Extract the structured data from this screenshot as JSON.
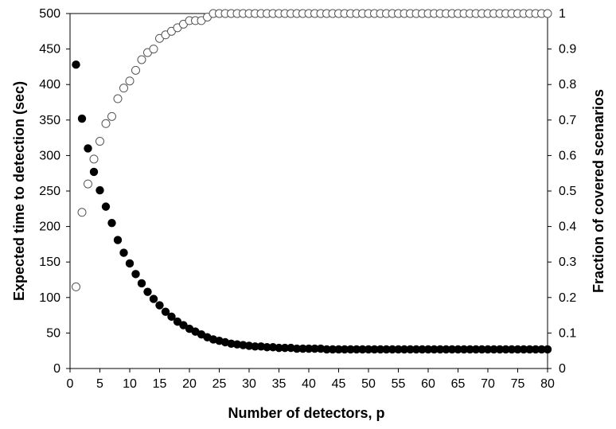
{
  "chart_data": {
    "type": "scatter",
    "title": "",
    "xlabel": "Number of detectors, p",
    "ylabel": "Expected time to detection (sec)",
    "y2label": "Fraction of covered scenarios",
    "xlim": [
      0,
      80
    ],
    "ylim": [
      0,
      500
    ],
    "y2lim": [
      0,
      1
    ],
    "x_ticks": [
      "0",
      "5",
      "10",
      "15",
      "20",
      "25",
      "30",
      "35",
      "40",
      "45",
      "50",
      "55",
      "60",
      "65",
      "70",
      "75",
      "80"
    ],
    "y_ticks": [
      "0",
      "50",
      "100",
      "150",
      "200",
      "250",
      "300",
      "350",
      "400",
      "450",
      "500"
    ],
    "y2_ticks": [
      "0",
      "0.1",
      "0.2",
      "0.3",
      "0.4",
      "0.5",
      "0.6",
      "0.7",
      "0.8",
      "0.9",
      "1"
    ],
    "grid": false,
    "legend": "none",
    "colors": {
      "filled": "#000000",
      "hollow_stroke": "#555555"
    },
    "series": [
      {
        "axis": "left",
        "marker": "filled-circle",
        "x": [
          1,
          2,
          3,
          4,
          5,
          6,
          7,
          8,
          9,
          10,
          11,
          12,
          13,
          14,
          15,
          16,
          17,
          18,
          19,
          20,
          21,
          22,
          23,
          24,
          25,
          26,
          27,
          28,
          29,
          30,
          31,
          32,
          33,
          34,
          35,
          36,
          37,
          38,
          39,
          40,
          41,
          42,
          43,
          44,
          45,
          46,
          47,
          48,
          49,
          50,
          51,
          52,
          53,
          54,
          55,
          56,
          57,
          58,
          59,
          60,
          61,
          62,
          63,
          64,
          65,
          66,
          67,
          68,
          69,
          70,
          71,
          72,
          73,
          74,
          75,
          76,
          77,
          78,
          79,
          80
        ],
        "values": [
          428,
          352,
          310,
          277,
          251,
          228,
          205,
          181,
          163,
          148,
          133,
          120,
          108,
          98,
          89,
          80,
          73,
          66,
          61,
          56,
          52,
          48,
          44,
          41,
          39,
          37,
          35,
          34,
          33,
          32,
          31,
          31,
          30,
          30,
          29,
          29,
          29,
          28,
          28,
          28,
          28,
          28,
          27,
          27,
          27,
          27,
          27,
          27,
          27,
          27,
          27,
          27,
          27,
          27,
          27,
          27,
          27,
          27,
          27,
          27,
          27,
          27,
          27,
          27,
          27,
          27,
          27,
          27,
          27,
          27,
          27,
          27,
          27,
          27,
          27,
          27,
          27,
          27,
          27,
          27
        ]
      },
      {
        "axis": "right",
        "marker": "hollow-circle",
        "x": [
          1,
          2,
          3,
          4,
          5,
          6,
          7,
          8,
          9,
          10,
          11,
          12,
          13,
          14,
          15,
          16,
          17,
          18,
          19,
          20,
          21,
          22,
          23,
          24,
          25,
          26,
          27,
          28,
          29,
          30,
          31,
          32,
          33,
          34,
          35,
          36,
          37,
          38,
          39,
          40,
          41,
          42,
          43,
          44,
          45,
          46,
          47,
          48,
          49,
          50,
          51,
          52,
          53,
          54,
          55,
          56,
          57,
          58,
          59,
          60,
          61,
          62,
          63,
          64,
          65,
          66,
          67,
          68,
          69,
          70,
          71,
          72,
          73,
          74,
          75,
          76,
          77,
          78,
          79,
          80
        ],
        "values": [
          0.23,
          0.44,
          0.52,
          0.59,
          0.64,
          0.69,
          0.71,
          0.76,
          0.79,
          0.81,
          0.84,
          0.87,
          0.89,
          0.9,
          0.93,
          0.94,
          0.95,
          0.96,
          0.97,
          0.98,
          0.98,
          0.98,
          0.99,
          1,
          1,
          1,
          1,
          1,
          1,
          1,
          1,
          1,
          1,
          1,
          1,
          1,
          1,
          1,
          1,
          1,
          1,
          1,
          1,
          1,
          1,
          1,
          1,
          1,
          1,
          1,
          1,
          1,
          1,
          1,
          1,
          1,
          1,
          1,
          1,
          1,
          1,
          1,
          1,
          1,
          1,
          1,
          1,
          1,
          1,
          1,
          1,
          1,
          1,
          1,
          1,
          1,
          1,
          1,
          1,
          1
        ]
      }
    ]
  }
}
